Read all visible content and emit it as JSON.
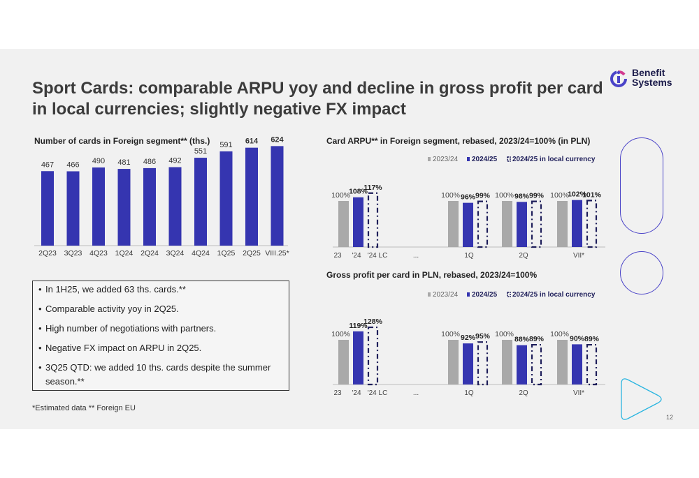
{
  "title": "Sport Cards: comparable ARPU yoy and decline in gross profit per card in local currencies; slightly negative FX impact",
  "logo": {
    "line1": "Benefit",
    "line2": "Systems",
    "icon": "benefit-systems-logo-icon"
  },
  "colors": {
    "bar_main": "#3535b0",
    "bar_prev": "#a9a9a9",
    "dashed": "#1e1e5a",
    "accent_outline": "#4a43c8",
    "accent_cyan": "#2ab5e0"
  },
  "bullets": [
    "In 1H25, we added 63 ths. cards.**",
    "Comparable activity yoy in 2Q25.",
    "High number of negotiations with partners.",
    "Negative FX impact on ARPU in 2Q25.",
    "3Q25 QTD: we added 10 ths. cards despite the summer season.**"
  ],
  "footnote": "*Estimated data ** Foreign EU",
  "page_number": "12",
  "chart_data": [
    {
      "type": "bar",
      "title": "Number of cards in Foreign segment** (ths.)",
      "categories": [
        "2Q23",
        "3Q23",
        "4Q23",
        "1Q24",
        "2Q24",
        "3Q24",
        "4Q24",
        "1Q25",
        "2Q25",
        "VIII.25*"
      ],
      "values": [
        467,
        466,
        490,
        481,
        486,
        492,
        551,
        591,
        614,
        624
      ],
      "data_labels": [
        "467",
        "466",
        "490",
        "481",
        "486",
        "492",
        "551",
        "591",
        "614",
        "624"
      ],
      "bold_labels_from_index": 8,
      "ylim": [
        0,
        700
      ]
    },
    {
      "type": "bar",
      "title": "Card ARPU** in Foreign segment, rebased, 2023/24=100% (in PLN)",
      "legend": [
        "2023/24",
        "2024/25",
        "2024/25 in local currency"
      ],
      "legend_position": "top-right",
      "categories": [
        "23",
        "'24",
        "'24 LC",
        "...",
        "1Q",
        "2Q",
        "VII*"
      ],
      "group_year": {
        "values": [
          100,
          108,
          117
        ],
        "labels": [
          "100%",
          "108%",
          "117%"
        ]
      },
      "groups": [
        {
          "values": [
            100,
            96,
            99
          ],
          "labels": [
            "100%",
            "96%",
            "99%"
          ]
        },
        {
          "values": [
            100,
            98,
            99
          ],
          "labels": [
            "100%",
            "98%",
            "99%"
          ]
        },
        {
          "values": [
            100,
            102,
            101
          ],
          "labels": [
            "100%",
            "102%",
            "101%"
          ]
        }
      ],
      "ylim": [
        0,
        130
      ]
    },
    {
      "type": "bar",
      "title": "Gross profit per card in PLN, rebased, 2023/24=100%",
      "legend": [
        "2023/24",
        "2024/25",
        "2024/25 in local currency"
      ],
      "legend_position": "top-right",
      "categories": [
        "23",
        "'24",
        "'24 LC",
        "...",
        "1Q",
        "2Q",
        "VII*"
      ],
      "group_year": {
        "values": [
          100,
          119,
          128
        ],
        "labels": [
          "100%",
          "119%",
          "128%"
        ]
      },
      "groups": [
        {
          "values": [
            100,
            92,
            95
          ],
          "labels": [
            "100%",
            "92%",
            "95%"
          ]
        },
        {
          "values": [
            100,
            88,
            89
          ],
          "labels": [
            "100%",
            "88%",
            "89%"
          ]
        },
        {
          "values": [
            100,
            90,
            89
          ],
          "labels": [
            "100%",
            "90%",
            "89%"
          ]
        }
      ],
      "ylim": [
        0,
        140
      ]
    }
  ]
}
